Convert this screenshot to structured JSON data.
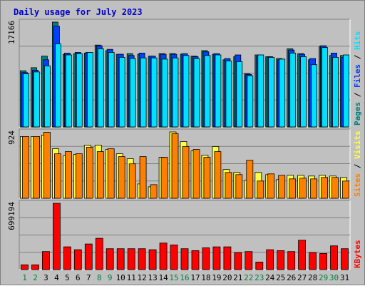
{
  "chart_data": {
    "type": "bar",
    "title": "Daily usage for July 2023",
    "colors": {
      "pages": "#008080",
      "files": "#0040ff",
      "hits": "#00e0ff",
      "sites": "#ff8000",
      "visits": "#ffff40",
      "kbytes": "#ff0000",
      "weekday_label": "#000000",
      "weekend_label": "#008040",
      "background": "#c0c0c0",
      "plot_background": "#c0c0c0",
      "grid": "#808080"
    },
    "categories": [
      "1",
      "2",
      "3",
      "4",
      "5",
      "6",
      "7",
      "8",
      "9",
      "10",
      "11",
      "12",
      "13",
      "14",
      "15",
      "16",
      "17",
      "18",
      "19",
      "20",
      "21",
      "22",
      "23",
      "24",
      "25",
      "26",
      "27",
      "28",
      "29",
      "30",
      "31"
    ],
    "weekend_days": [
      "1",
      "2",
      "8",
      "9",
      "15",
      "16",
      "22",
      "23",
      "29",
      "30"
    ],
    "panels": [
      {
        "id": "hits-panel",
        "ymax_label": "17166",
        "ymax": 17166,
        "legend": [
          {
            "text": "Pages",
            "color": "#008080"
          },
          {
            "text": " / ",
            "color": "#000000"
          },
          {
            "text": "Files",
            "color": "#0040ff"
          },
          {
            "text": " / ",
            "color": "#000000"
          },
          {
            "text": "Hits",
            "color": "#00e0ff"
          }
        ],
        "series": [
          {
            "name": "Pages",
            "color": "#008080",
            "values": [
              9200,
              9700,
              11600,
              17166,
              11900,
              12000,
              12100,
              13400,
              12500,
              11900,
              12000,
              11900,
              11600,
              12000,
              12000,
              11900,
              11600,
              12500,
              11900,
              11000,
              11500,
              8700,
              11800,
              11500,
              11200,
              12800,
              12000,
              11000,
              13200,
              11700,
              11700
            ]
          },
          {
            "name": "Files",
            "color": "#0040ff",
            "values": [
              8900,
              9300,
              11000,
              16500,
              12100,
              12200,
              12200,
              13300,
              12700,
              11900,
              11700,
              12100,
              11600,
              11900,
              11900,
              12000,
              11500,
              12300,
              12000,
              11200,
              11800,
              8600,
              11600,
              11500,
              11000,
              12600,
              11900,
              11200,
              13300,
              12100,
              11400
            ]
          },
          {
            "name": "Hits",
            "color": "#00e0ff",
            "values": [
              8700,
              9000,
              10000,
              13600,
              11800,
              12000,
              12200,
              12800,
              12200,
              11400,
              11200,
              11300,
              11300,
              11100,
              11300,
              11700,
              11200,
              11700,
              11800,
              10800,
              10700,
              8400,
              11800,
              11400,
              11100,
              12100,
              11500,
              10200,
              13000,
              11400,
              11800
            ]
          }
        ]
      },
      {
        "id": "visits-panel",
        "ymax_label": "924",
        "ymax": 924,
        "legend": [
          {
            "text": "Sites",
            "color": "#ff8000"
          },
          {
            "text": " / ",
            "color": "#000000"
          },
          {
            "text": "Visits",
            "color": "#ffff40"
          }
        ],
        "series": [
          {
            "name": "Visits",
            "color": "#ffff40",
            "values": [
              860,
              860,
              880,
              690,
              590,
              610,
              740,
              740,
              680,
              620,
              550,
              200,
              160,
              570,
              924,
              790,
              660,
              600,
              720,
              400,
              360,
              250,
              360,
              330,
              260,
              320,
              320,
              310,
              320,
              310,
              290
            ]
          },
          {
            "name": "Sites",
            "color": "#ff8000",
            "values": [
              860,
              860,
              920,
              620,
              650,
              620,
              710,
              650,
              690,
              580,
              480,
              580,
              190,
              570,
              900,
              720,
              680,
              570,
              650,
              360,
              330,
              530,
              240,
              340,
              320,
              270,
              280,
              270,
              290,
              290,
              240
            ]
          }
        ]
      },
      {
        "id": "kbytes-panel",
        "ymax_label": "699194",
        "ymax": 699194,
        "legend": [
          {
            "text": "KBytes",
            "color": "#ff0000"
          }
        ],
        "series": [
          {
            "name": "KBytes",
            "color": "#ff0000",
            "values": [
              50000,
              50000,
              190000,
              699194,
              240000,
              210000,
              270000,
              330000,
              220000,
              220000,
              220000,
              220000,
              210000,
              280000,
              260000,
              220000,
              200000,
              230000,
              240000,
              240000,
              180000,
              190000,
              80000,
              210000,
              200000,
              190000,
              310000,
              180000,
              170000,
              250000,
              220000
            ]
          }
        ]
      }
    ]
  }
}
